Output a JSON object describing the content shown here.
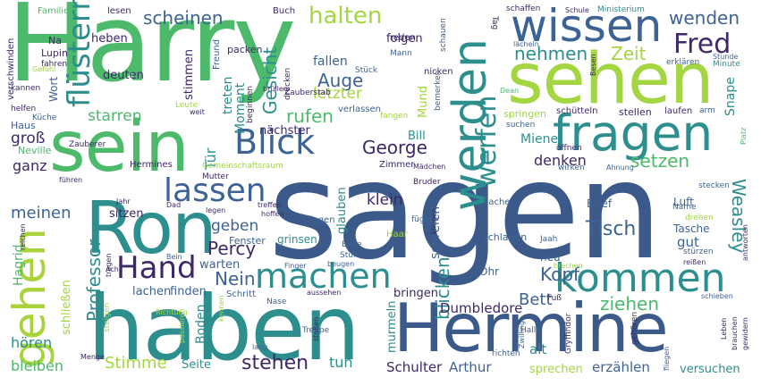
{
  "words": [
    {
      "text": "sagen",
      "color": "#3b5a8a"
    },
    {
      "text": "Harry",
      "color": "#4db96b"
    },
    {
      "text": "haben",
      "color": "#2d8e8e"
    },
    {
      "text": "sehen",
      "color": "#a3d640"
    },
    {
      "text": "Hermine",
      "color": "#3b5a8a"
    },
    {
      "text": "sein",
      "color": "#4db96b"
    },
    {
      "text": "Ron",
      "color": "#2d8e8e"
    },
    {
      "text": "fragen",
      "color": "#2d8e8e"
    },
    {
      "text": "wissen",
      "color": "#3d6394"
    },
    {
      "text": "gehen",
      "color": "#a9d33a"
    },
    {
      "text": "werden",
      "color": "#2d8e8e"
    },
    {
      "text": "kommen",
      "color": "#2d8e8e"
    },
    {
      "text": "machen",
      "color": "#2d8e8e"
    },
    {
      "text": "Hand",
      "color": "#3e2867"
    },
    {
      "text": "Blick",
      "color": "#3d6394"
    },
    {
      "text": "lassen",
      "color": "#3d6394"
    },
    {
      "text": "flüstern",
      "color": "#2d8e8e"
    },
    {
      "text": "Fred",
      "color": "#3e2867"
    },
    {
      "text": "werfen",
      "color": "#2d8e8e"
    },
    {
      "text": "halten",
      "color": "#a3d640"
    },
    {
      "text": "scheinen",
      "color": "#3d6394"
    },
    {
      "text": "nehmen",
      "color": "#2d8e8e"
    },
    {
      "text": "Zeit",
      "color": "#a3d640"
    },
    {
      "text": "wenden",
      "color": "#3d6394"
    },
    {
      "text": "Gesicht",
      "color": "#2d8e8e"
    },
    {
      "text": "Auge",
      "color": "#3d6394"
    },
    {
      "text": "letzter",
      "color": "#a3d640"
    },
    {
      "text": "rufen",
      "color": "#4db96b"
    },
    {
      "text": "George",
      "color": "#3e2867"
    },
    {
      "text": "Tisch",
      "color": "#3d6394"
    },
    {
      "text": "Percy",
      "color": "#3e2867"
    },
    {
      "text": "geben",
      "color": "#3d6394"
    },
    {
      "text": "Professor",
      "color": "#2d8e8e"
    },
    {
      "text": "Nein",
      "color": "#3d6394"
    },
    {
      "text": "stehen",
      "color": "#3e2867"
    },
    {
      "text": "Stimme",
      "color": "#a3d640"
    },
    {
      "text": "Kopf",
      "color": "#3d6394"
    },
    {
      "text": "Weasley",
      "color": "#2d8e8e"
    },
    {
      "text": "blicken",
      "color": "#2d8e8e"
    },
    {
      "text": "Bett",
      "color": "#3d6394"
    },
    {
      "text": "ziehen",
      "color": "#4db96b"
    },
    {
      "text": "setzen",
      "color": "#4db96b"
    },
    {
      "text": "denken",
      "color": "#3e2867"
    },
    {
      "text": "Miene",
      "color": "#2d8e8e"
    },
    {
      "text": "Dumbledore",
      "color": "#3e2867"
    },
    {
      "text": "meinen",
      "color": "#3d6394"
    },
    {
      "text": "starren",
      "color": "#4db96b"
    },
    {
      "text": "groß",
      "color": "#3e2867"
    },
    {
      "text": "ganz",
      "color": "#3e2867"
    },
    {
      "text": "Tür",
      "color": "#2d8e8e"
    },
    {
      "text": "hören",
      "color": "#2d8e8e"
    },
    {
      "text": "bleiben",
      "color": "#4db96b"
    },
    {
      "text": "tun",
      "color": "#2d8e8e"
    },
    {
      "text": "Seite",
      "color": "#2d8e8e"
    },
    {
      "text": "Schulter",
      "color": "#3e2867"
    },
    {
      "text": "Arthur",
      "color": "#3d6394"
    },
    {
      "text": "erzählen",
      "color": "#3d6394"
    },
    {
      "text": "versuchen",
      "color": "#2d8e8e"
    },
    {
      "text": "sprechen",
      "color": "#a3d640"
    },
    {
      "text": "alt",
      "color": "#2d8e8e"
    },
    {
      "text": "gut",
      "color": "#3d6394"
    },
    {
      "text": "Boden",
      "color": "#2d8e8e"
    },
    {
      "text": "heben",
      "color": "#3e2867"
    },
    {
      "text": "folgen",
      "color": "#3e2867"
    },
    {
      "text": "fallen",
      "color": "#3d6394"
    },
    {
      "text": "deuten",
      "color": "#3e2867"
    },
    {
      "text": "stimmen",
      "color": "#3e2867"
    },
    {
      "text": "Moment",
      "color": "#2d8e8e"
    },
    {
      "text": "treten",
      "color": "#2d8e8e"
    },
    {
      "text": "nächster",
      "color": "#3e2867"
    },
    {
      "text": "Bill",
      "color": "#2d8e8e"
    },
    {
      "text": "Mund",
      "color": "#a3d640"
    },
    {
      "text": "sitzen",
      "color": "#3e2867"
    },
    {
      "text": "klein",
      "color": "#3e2867"
    },
    {
      "text": "glauben",
      "color": "#2d8e8e"
    },
    {
      "text": "schreien",
      "color": "#3d6394"
    },
    {
      "text": "Hagrid",
      "color": "#4db96b"
    },
    {
      "text": "schließen",
      "color": "#a3d640"
    },
    {
      "text": "lachen",
      "color": "#3d6394"
    },
    {
      "text": "finden",
      "color": "#3d6394"
    },
    {
      "text": "warten",
      "color": "#3d6394"
    },
    {
      "text": "murmeln",
      "color": "#2d8e8e"
    },
    {
      "text": "bringen",
      "color": "#3e2867"
    },
    {
      "text": "Snape",
      "color": "#2d8e8e"
    },
    {
      "text": "Schritt",
      "color": "#3d6394"
    },
    {
      "text": "Fenster",
      "color": "#3d6394"
    },
    {
      "text": "grinsen",
      "color": "#2d8e8e"
    },
    {
      "text": "neu",
      "color": "#3d6394"
    },
    {
      "text": "Ohr",
      "color": "#3d6394"
    },
    {
      "text": "Luft",
      "color": "#3d6394"
    },
    {
      "text": "Tasche",
      "color": "#3d6394"
    },
    {
      "text": "Brief",
      "color": "#3d6394"
    },
    {
      "text": "Sache",
      "color": "#3d6394"
    },
    {
      "text": "Haar",
      "color": "#a3d640"
    },
    {
      "text": "schlagen",
      "color": "#3d6394"
    },
    {
      "text": "liegen",
      "color": "#3d6394"
    },
    {
      "text": "Na",
      "color": "#3e2867"
    },
    {
      "text": "Lupin",
      "color": "#3e2867"
    },
    {
      "text": "Wort",
      "color": "#3d6394"
    },
    {
      "text": "Haus",
      "color": "#3d6394"
    },
    {
      "text": "Neville",
      "color": "#4db96b"
    },
    {
      "text": "Küche",
      "color": "#3d6394"
    },
    {
      "text": "helfen",
      "color": "#3e2867"
    },
    {
      "text": "kannen",
      "color": "#3e2867"
    },
    {
      "text": "verschwinden",
      "color": "#3e2867"
    },
    {
      "text": "fahren",
      "color": "#3e2867"
    },
    {
      "text": "Familie",
      "color": "#4db96b"
    },
    {
      "text": "lesen",
      "color": "#3e2867"
    },
    {
      "text": "Buch",
      "color": "#3e2867"
    },
    {
      "text": "Tag",
      "color": "#3e2867"
    },
    {
      "text": "schaffen",
      "color": "#3e2867"
    },
    {
      "text": "Schule",
      "color": "#3e2867"
    },
    {
      "text": "Ministerium",
      "color": "#2d8e8e"
    },
    {
      "text": "lächeln",
      "color": "#3d6394"
    },
    {
      "text": "Besen",
      "color": "#3e2867"
    },
    {
      "text": "Stunde",
      "color": "#3d6394"
    },
    {
      "text": "erklären",
      "color": "#3d6394"
    },
    {
      "text": "Minute",
      "color": "#2d8e8e"
    },
    {
      "text": "reden",
      "color": "#3e2867"
    },
    {
      "text": "Mann",
      "color": "#3d6394"
    },
    {
      "text": "packen",
      "color": "#3e2867"
    },
    {
      "text": "Freund",
      "color": "#3d6394"
    },
    {
      "text": "schauen",
      "color": "#3d6394"
    },
    {
      "text": "nicken",
      "color": "#3e2867"
    },
    {
      "text": "Dean",
      "color": "#4db96b"
    },
    {
      "text": "bemerken",
      "color": "#3d6394"
    },
    {
      "text": "fangen",
      "color": "#a3d640"
    },
    {
      "text": "schütteln",
      "color": "#3e2867"
    },
    {
      "text": "stellen",
      "color": "#3e2867"
    },
    {
      "text": "laufen",
      "color": "#3e2867"
    },
    {
      "text": "arm",
      "color": "#3d6394"
    },
    {
      "text": "springen",
      "color": "#a3d640"
    },
    {
      "text": "suchen",
      "color": "#3d6394"
    },
    {
      "text": "öffnen",
      "color": "#3e2867"
    },
    {
      "text": "verlassen",
      "color": "#3d6394"
    },
    {
      "text": "drücken",
      "color": "#3e2867"
    },
    {
      "text": "Zauberstab",
      "color": "#3e2867"
    },
    {
      "text": "Stück",
      "color": "#3d6394"
    },
    {
      "text": "brüllen",
      "color": "#3e2867"
    },
    {
      "text": "Gefühl",
      "color": "#a3d640"
    },
    {
      "text": "Leute",
      "color": "#a3d640"
    },
    {
      "text": "weit",
      "color": "#3e2867"
    },
    {
      "text": "beginnen",
      "color": "#3e2867"
    },
    {
      "text": "Zauberer",
      "color": "#3e2867"
    },
    {
      "text": "Hermines",
      "color": "#3e2867"
    },
    {
      "text": "Gemeinschaftsraum",
      "color": "#a3d640"
    },
    {
      "text": "Mutter",
      "color": "#3e2867"
    },
    {
      "text": "Zimmer",
      "color": "#3e2867"
    },
    {
      "text": "Bruder",
      "color": "#3e2867"
    },
    {
      "text": "Mädchen",
      "color": "#3e2867"
    },
    {
      "text": "wirken",
      "color": "#3d6394"
    },
    {
      "text": "Ahnung",
      "color": "#3d6394"
    },
    {
      "text": "stecken",
      "color": "#3d6394"
    },
    {
      "text": "Platz",
      "color": "#4db96b"
    },
    {
      "text": "führen",
      "color": "#3e2867"
    },
    {
      "text": "Jahr",
      "color": "#3e2867"
    },
    {
      "text": "Dad",
      "color": "#3e2867"
    },
    {
      "text": "legen",
      "color": "#3e2867"
    },
    {
      "text": "treffen",
      "color": "#3e2867"
    },
    {
      "text": "hoffen",
      "color": "#3e2867"
    },
    {
      "text": "fügen",
      "color": "#3d6394"
    },
    {
      "text": "Jaah",
      "color": "#3d6394"
    },
    {
      "text": "Name",
      "color": "#3d6394"
    },
    {
      "text": "drehen",
      "color": "#a3d640"
    },
    {
      "text": "Ende",
      "color": "#3d6394"
    },
    {
      "text": "Stuhl",
      "color": "#3d6394"
    },
    {
      "text": "beugen",
      "color": "#3d6394"
    },
    {
      "text": "klingen",
      "color": "#3e2867"
    },
    {
      "text": "stürzen",
      "color": "#3d6394"
    },
    {
      "text": "reißen",
      "color": "#3e2867"
    },
    {
      "text": "antworten",
      "color": "#3e2867"
    },
    {
      "text": "Finger",
      "color": "#3d6394"
    },
    {
      "text": "Bein",
      "color": "#3d6394"
    },
    {
      "text": "Du",
      "color": "#3d6394"
    },
    {
      "text": "brechen",
      "color": "#a3d640"
    },
    {
      "text": "reichen",
      "color": "#3e2867"
    },
    {
      "text": "tragen",
      "color": "#3e2867"
    },
    {
      "text": "Ach",
      "color": "#3e2867"
    },
    {
      "text": "Nase",
      "color": "#3d6394"
    },
    {
      "text": "aussehen",
      "color": "#3e2867"
    },
    {
      "text": "Richtung",
      "color": "#a3d640"
    },
    {
      "text": "steigen",
      "color": "#a3d640"
    },
    {
      "text": "passieren",
      "color": "#a3d640"
    },
    {
      "text": "kennen",
      "color": "#a3d640"
    },
    {
      "text": "Menge",
      "color": "#3e2867"
    },
    {
      "text": "lang",
      "color": "#3d6394"
    },
    {
      "text": "Treppe",
      "color": "#3d6394"
    },
    {
      "text": "stoßen",
      "color": "#3e2867"
    },
    {
      "text": "Fuß",
      "color": "#3e2867"
    },
    {
      "text": "Gryffindor",
      "color": "#3e2867"
    },
    {
      "text": "gehören",
      "color": "#3e2867"
    },
    {
      "text": "Halle",
      "color": "#3d6394"
    },
    {
      "text": "Zwilling",
      "color": "#3d6394"
    },
    {
      "text": "richten",
      "color": "#3d6394"
    },
    {
      "text": "fliegen",
      "color": "#3d6394"
    },
    {
      "text": "Leben",
      "color": "#3e2867"
    },
    {
      "text": "brauchen",
      "color": "#3e2867"
    },
    {
      "text": "gewidern",
      "color": "#3e2867"
    },
    {
      "text": "schieben",
      "color": "#3d6394"
    }
  ]
}
